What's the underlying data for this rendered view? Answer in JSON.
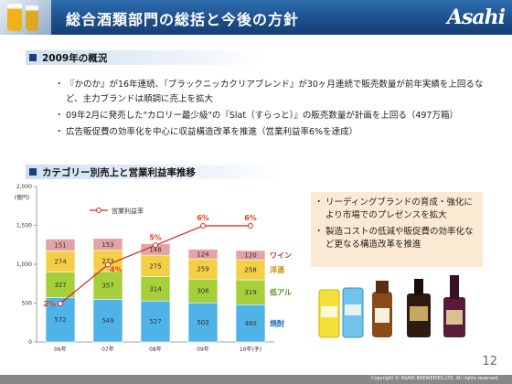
{
  "header": {
    "title": "総合酒類部門の総括と今後の方針",
    "logo": "Asahi"
  },
  "section1": {
    "heading": "2009年の概況",
    "bullets": [
      "『かのか』が16年連続、『ブラックニッカクリアブレンド』が30ヶ月連続で販売数量が前年実績を上回るなど、主力ブランドは順調に売上を拡大",
      "09年2月に発売した\"カロリー最少級\"の『Slat（すらっと）』の販売数量が計画を上回る（497万箱）",
      "広告販促費の効率化を中心に収益構造改革を推進（営業利益率6%を達成）"
    ]
  },
  "section2": {
    "heading": "カテゴリー別売上と営業利益率推移"
  },
  "notes": [
    "リーディングブランドの育成・強化により市場でのプレゼンスを拡大",
    "製造コストの低減や販促費の効率化など更なる構造改革を推進"
  ],
  "chart_data": {
    "type": "bar",
    "stacked": true,
    "categories": [
      "06年",
      "07年",
      "08年",
      "09年",
      "10年(予)"
    ],
    "ylabel": "(億円)",
    "ylim": [
      0,
      2000
    ],
    "yticks": [
      0,
      500,
      1000,
      1500,
      2000
    ],
    "yticklabels": [
      "0",
      "500",
      "1,000",
      "1,500",
      "2,000"
    ],
    "series": [
      {
        "name": "焼酎",
        "values": [
          572,
          549,
          527,
          503,
          480
        ],
        "color": "#4fb3e8"
      },
      {
        "name": "低アル",
        "values": [
          327,
          357,
          314,
          306,
          319
        ],
        "color": "#a6cf3a"
      },
      {
        "name": "洋酒",
        "values": [
          274,
          273,
          275,
          259,
          258
        ],
        "color": "#f3cf45"
      },
      {
        "name": "ワイン",
        "values": [
          151,
          153,
          148,
          124,
          120
        ],
        "color": "#e3a2a6"
      }
    ],
    "line": {
      "name": "営業利益率",
      "values": [
        2,
        4,
        5,
        6,
        6
      ],
      "labels": [
        "2%",
        "4%",
        "5%",
        "6%",
        "6%"
      ],
      "color": "#e02020"
    },
    "legend": "top-left"
  },
  "footer": {
    "copyright": "Copyright © ASAHI BREWERIES,LTD. All rights reserved.",
    "page": "12"
  }
}
